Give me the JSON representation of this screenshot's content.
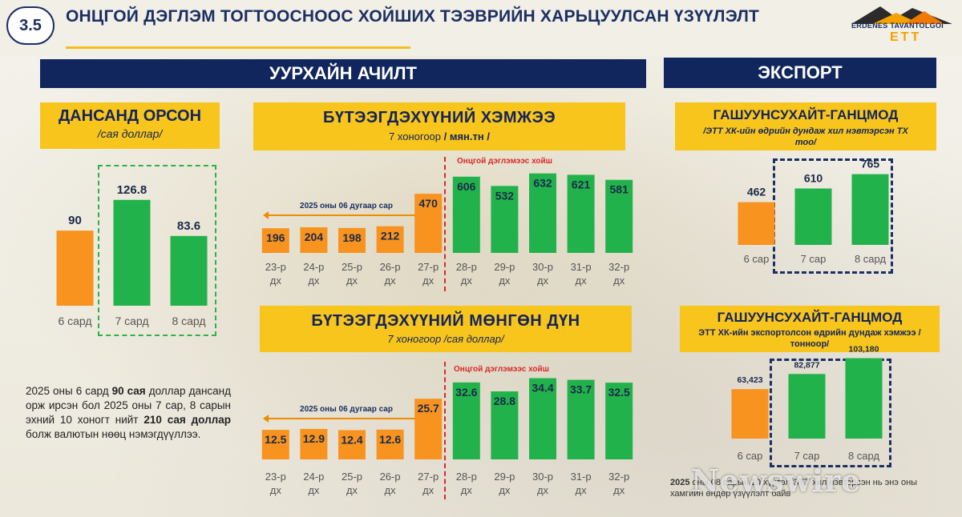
{
  "header": {
    "section_number": "3.5",
    "title": "ОНЦГОЙ ДЭГЛЭМ ТОГТООСНООС ХОЙШИХ ТЭЭВРИЙН ХАРЬЦУУЛСАН ҮЗҮҮЛЭЛТ",
    "logo_text": "ERDENES TAVANTOLGOI",
    "logo_mark": "ETT"
  },
  "sections": {
    "mining": "УУРХАЙН АЧИЛТ",
    "export": "ЭКСПОРТ"
  },
  "colors": {
    "orange": "#f7931e",
    "green": "#22b24c",
    "navy": "#10265c",
    "yellow": "#f7c51c"
  },
  "chart_data": [
    {
      "id": "deposited",
      "type": "bar",
      "title": "ДАНСАНД ОРСОН",
      "subtitle": "/сая доллар/",
      "categories": [
        "6 сард",
        "7 сард",
        "8 сард"
      ],
      "values": [
        90,
        126.8,
        83.6
      ],
      "value_labels": [
        "90",
        "126.8",
        "83.6"
      ],
      "colors": [
        "#f7931e",
        "#22b24c",
        "#22b24c"
      ],
      "ylim": [
        0,
        140
      ]
    },
    {
      "id": "product_volume",
      "type": "bar",
      "title": "БҮТЭЭГДЭХҮҮНИЙ ХЭМЖЭЭ",
      "subtitle_pre": "7 хоногоор ",
      "subtitle_unit": "/ мян.тн /",
      "categories": [
        "23-р дх",
        "24-р дх",
        "25-р дх",
        "26-р дх",
        "27-р дх",
        "28-р дх",
        "29-р дх",
        "30-р дх",
        "31-р дх",
        "32-р дх"
      ],
      "values": [
        196,
        204,
        198,
        212,
        470,
        606,
        532,
        632,
        621,
        581
      ],
      "value_labels": [
        "196",
        "204",
        "198",
        "212",
        "470",
        "606",
        "532",
        "632",
        "621",
        "581"
      ],
      "colors": [
        "#f7931e",
        "#f7931e",
        "#f7931e",
        "#f7931e",
        "#f7931e",
        "#22b24c",
        "#22b24c",
        "#22b24c",
        "#22b24c",
        "#22b24c"
      ],
      "ylim": [
        0,
        700
      ],
      "annotation_range": "2025 оны 06 дугаар сар",
      "annotation_regime": "Онцгой дэглэмээс хойш"
    },
    {
      "id": "product_value",
      "type": "bar",
      "title": "БҮТЭЭГДЭХҮҮНИЙ МӨНГӨН ДҮН",
      "subtitle": "7 хоногоор /сая доллар/",
      "categories": [
        "23-р дх",
        "24-р дх",
        "25-р дх",
        "26-р дх",
        "27-р дх",
        "28-р дх",
        "29-р дх",
        "30-р дх",
        "31-р дх",
        "32-р дх"
      ],
      "values": [
        12.5,
        12.9,
        12.4,
        12.6,
        25.7,
        32.6,
        28.8,
        34.4,
        33.7,
        32.5
      ],
      "value_labels": [
        "12.5",
        "12.9",
        "12.4",
        "12.6",
        "25.7",
        "32.6",
        "28.8",
        "34.4",
        "33.7",
        "32.5"
      ],
      "colors": [
        "#f7931e",
        "#f7931e",
        "#f7931e",
        "#f7931e",
        "#f7931e",
        "#22b24c",
        "#22b24c",
        "#22b24c",
        "#22b24c",
        "#22b24c"
      ],
      "ylim": [
        0,
        40
      ],
      "annotation_range": "2025 оны 06 дугаар сар",
      "annotation_regime": "Онцгой дэглэмээс хойш"
    },
    {
      "id": "trucks",
      "type": "bar",
      "title": "ГАШУУНСУХАЙТ-ГАНЦМОД",
      "subtitle": "/ЭТТ ХК-ийн өдрийн дундаж хил нэвтэрсэн ТХ тоо/",
      "categories": [
        "6 сар",
        "7 сар",
        "8 сард"
      ],
      "values": [
        462,
        610,
        765
      ],
      "value_labels": [
        "462",
        "610",
        "765"
      ],
      "colors": [
        "#f7931e",
        "#22b24c",
        "#22b24c"
      ],
      "ylim": [
        0,
        900
      ]
    },
    {
      "id": "export_tonnes",
      "type": "bar",
      "title": "ГАШУУНСУХАЙТ-ГАНЦМОД",
      "subtitle": "ЭТТ ХК-ийн экспортолсон өдрийн дундаж хэмжээ /тонноор/",
      "categories": [
        "6 сар",
        "7 сар",
        "8 сард"
      ],
      "values": [
        63423,
        82877,
        103180
      ],
      "value_labels": [
        "63,423",
        "82,877",
        "103,180"
      ],
      "colors": [
        "#f7931e",
        "#22b24c",
        "#22b24c"
      ],
      "ylim": [
        0,
        115000
      ]
    }
  ],
  "note": {
    "p1": "2025 оны 6 сард ",
    "b1": "90 сая",
    "p2": " доллар дансанд орж ирсэн бол 2025 оны 7 сар, 8 сарын эхний 10 хоногт нийт ",
    "b2": "210 сая доллар",
    "p3": " болж валютын нөөц нэмэгдүүллээ."
  },
  "footnote": {
    "bold": "2025",
    "text": " оны 08 сарын 10 хүртэл ЭТТ хил нэвтэрсэн нь энэ оны хамгийн өндөр үзүүлэлт байв"
  },
  "watermark": "Newswire"
}
